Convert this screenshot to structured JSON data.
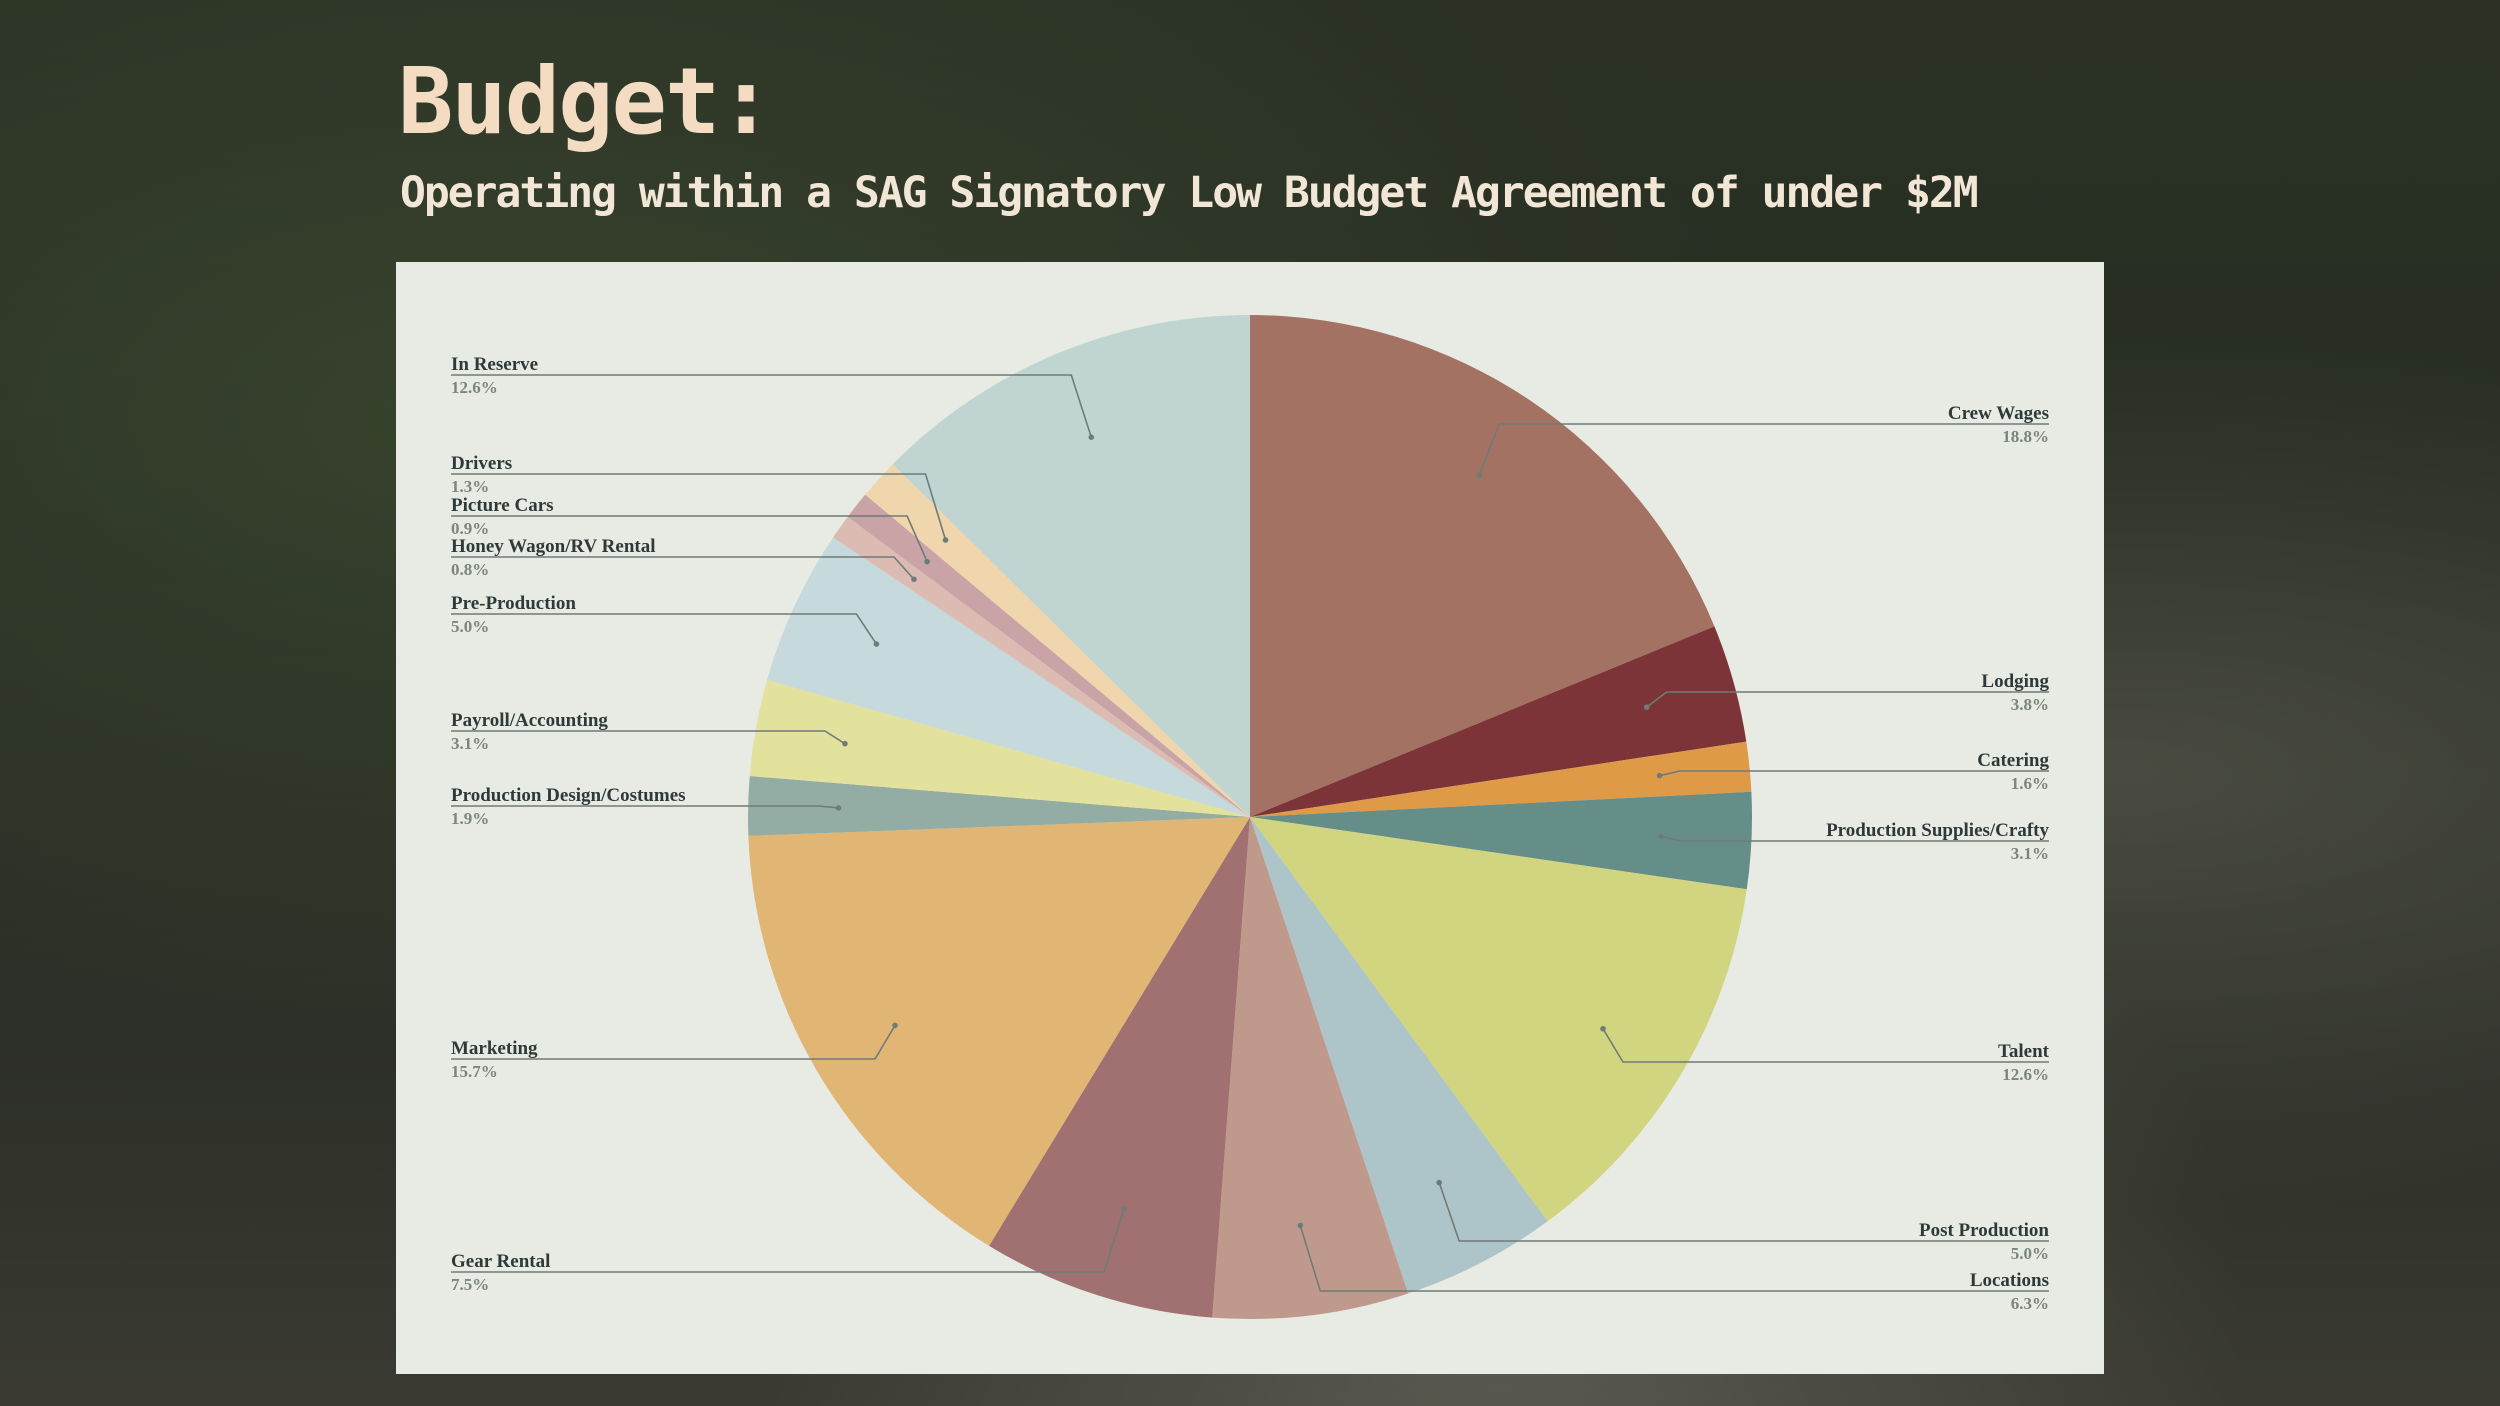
{
  "header": {
    "title": "Budget:",
    "subtitle": "Operating within a SAG Signatory Low Budget Agreement of under $2M"
  },
  "chart_data": {
    "type": "pie",
    "slices": [
      {
        "label": "Crew Wages",
        "value": 18.8,
        "pct_label": "18.8%",
        "color": "#a37262"
      },
      {
        "label": "Lodging",
        "value": 3.8,
        "pct_label": "3.8%",
        "color": "#7c3438"
      },
      {
        "label": "Catering",
        "value": 1.6,
        "pct_label": "1.6%",
        "color": "#de9a46"
      },
      {
        "label": "Production Supplies/Crafty",
        "value": 3.1,
        "pct_label": "3.1%",
        "color": "#668e88"
      },
      {
        "label": "Talent",
        "value": 12.6,
        "pct_label": "12.6%",
        "color": "#d1d57f"
      },
      {
        "label": "Post Production",
        "value": 5.0,
        "pct_label": "5.0%",
        "color": "#adc5c8"
      },
      {
        "label": "Locations",
        "value": 6.3,
        "pct_label": "6.3%",
        "color": "#bf9a8c"
      },
      {
        "label": "Gear Rental",
        "value": 7.5,
        "pct_label": "7.5%",
        "color": "#a17171"
      },
      {
        "label": "Marketing",
        "value": 15.7,
        "pct_label": "15.7%",
        "color": "#e1b574"
      },
      {
        "label": "Production Design/Costumes",
        "value": 1.9,
        "pct_label": "1.9%",
        "color": "#93ada4"
      },
      {
        "label": "Payroll/Accounting",
        "value": 3.1,
        "pct_label": "3.1%",
        "color": "#e3e29c"
      },
      {
        "label": "Pre-Production",
        "value": 5.0,
        "pct_label": "5.0%",
        "color": "#c6d9dc"
      },
      {
        "label": "Honey Wagon/RV Rental",
        "value": 0.8,
        "pct_label": "0.8%",
        "color": "#dcbcb2"
      },
      {
        "label": "Picture Cars",
        "value": 0.9,
        "pct_label": "0.9%",
        "color": "#c9a3a6"
      },
      {
        "label": "Drivers",
        "value": 1.3,
        "pct_label": "1.3%",
        "color": "#efd6ad"
      },
      {
        "label": "In Reserve",
        "value": 12.6,
        "pct_label": "12.6%",
        "color": "#c0d5d2"
      }
    ]
  }
}
